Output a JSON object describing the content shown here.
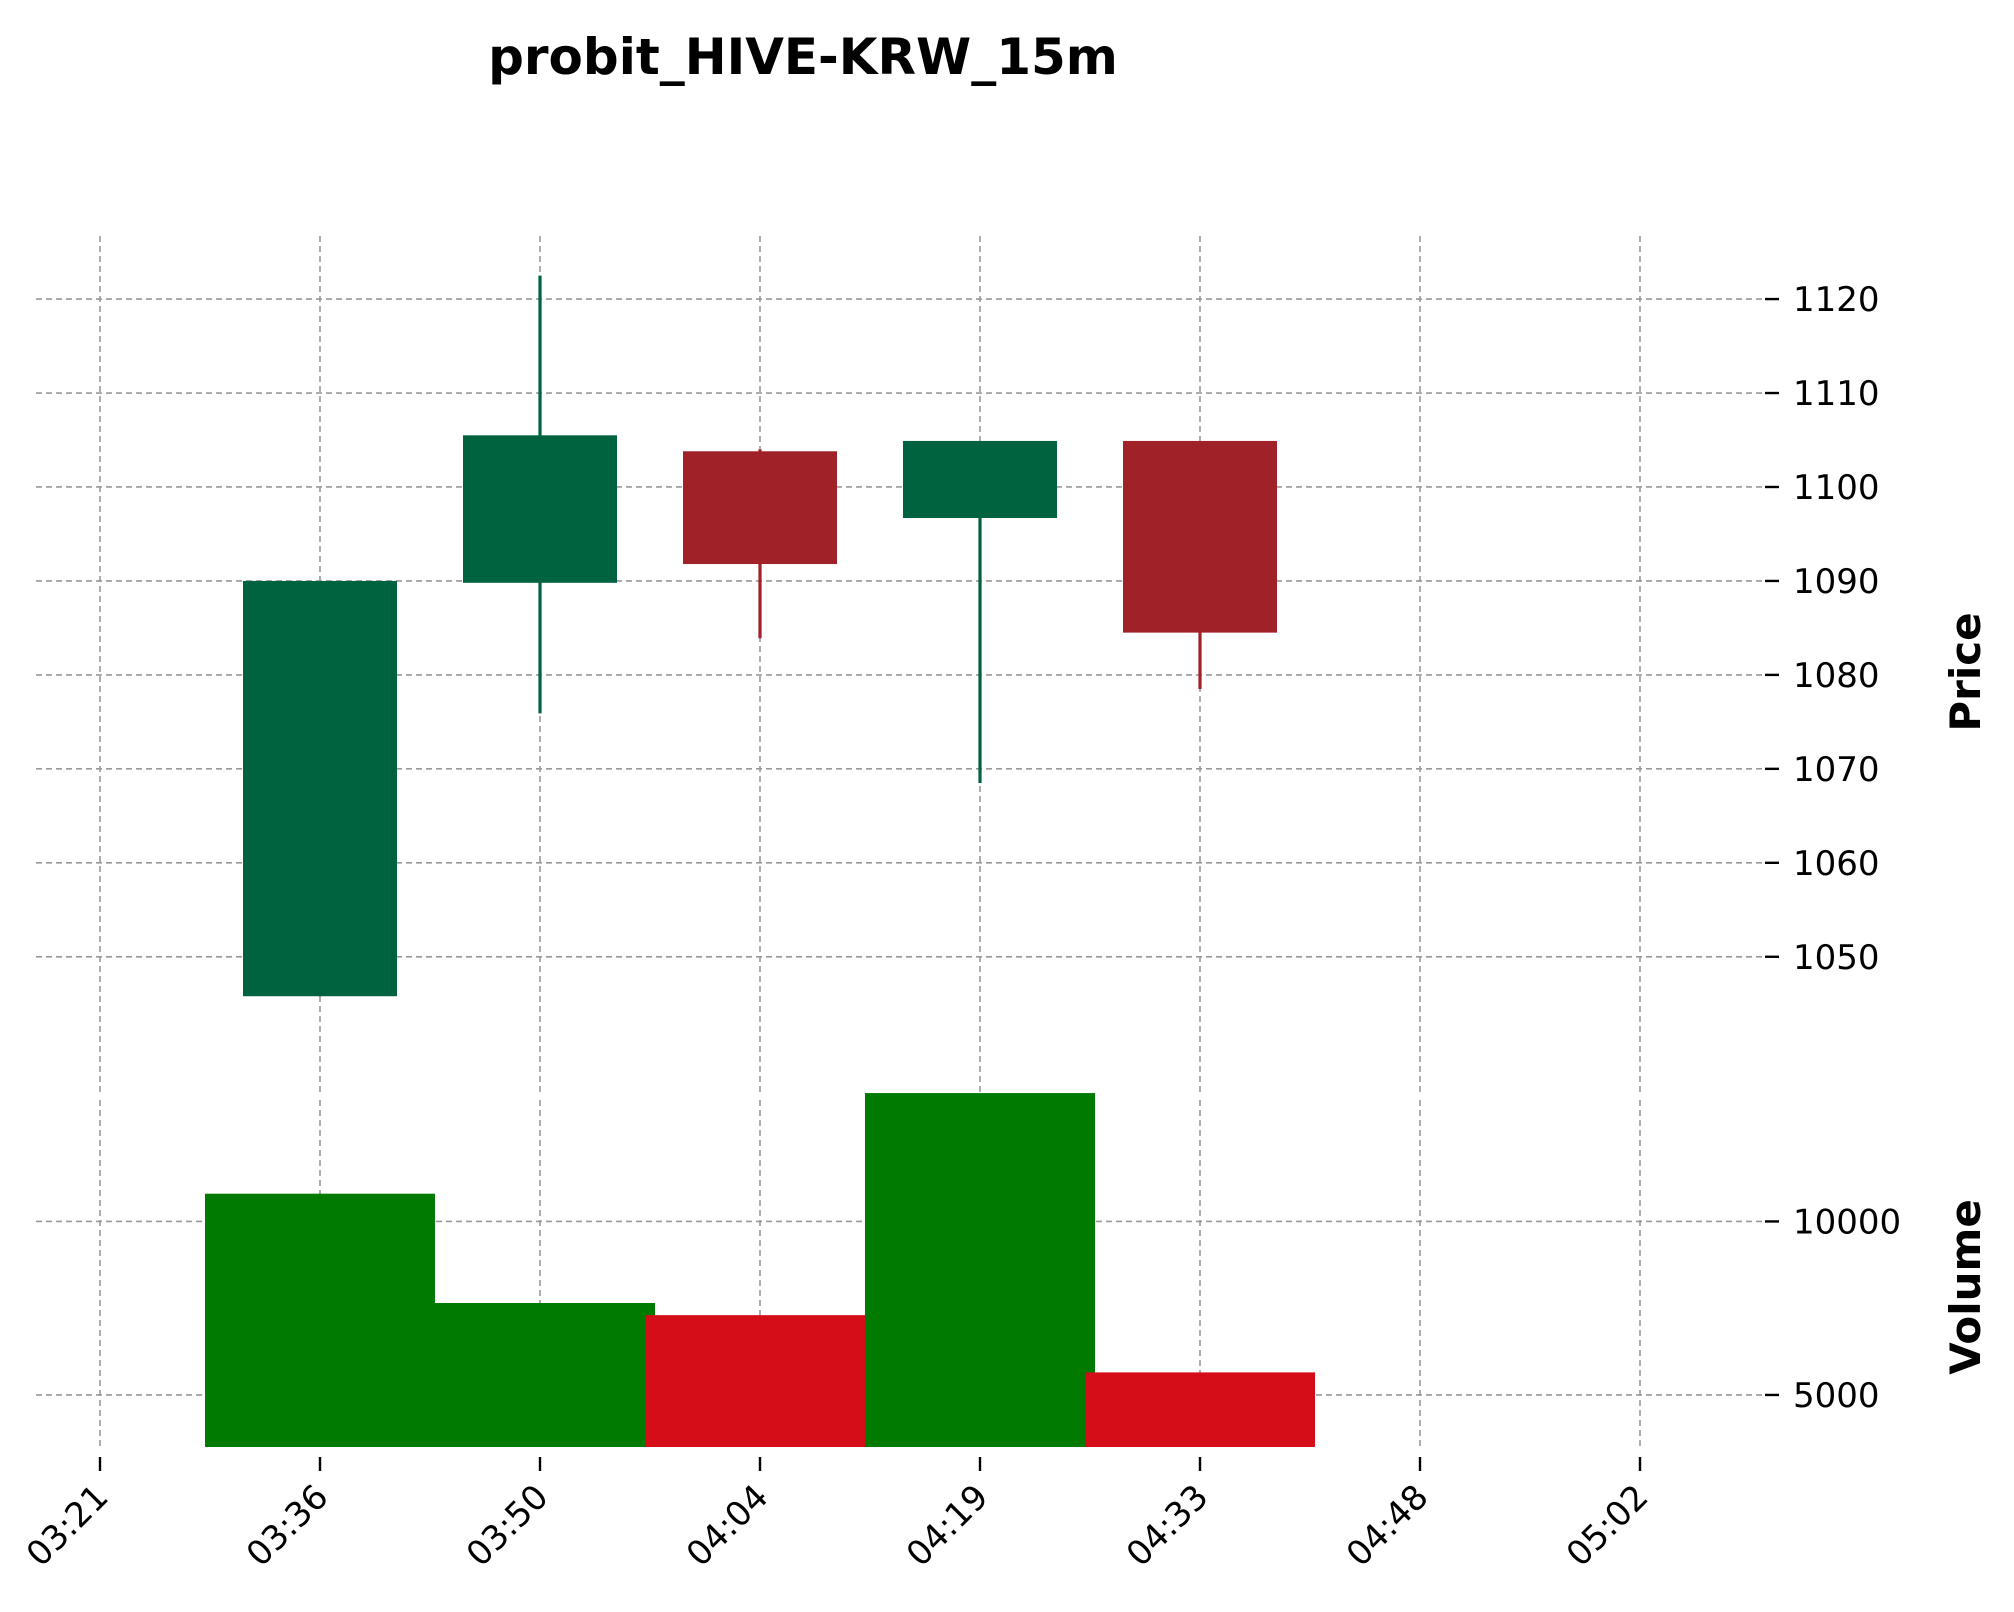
{
  "chart_data": {
    "type": "candlestick",
    "title": "probit_HIVE-KRW_15m",
    "price_label": "Price",
    "volume_label": "Volume",
    "x_ticks": [
      "03:21",
      "03:36",
      "03:50",
      "04:04",
      "04:19",
      "04:33",
      "04:48",
      "05:02"
    ],
    "price_ticks": [
      1050,
      1060,
      1070,
      1080,
      1090,
      1100,
      1110,
      1120
    ],
    "volume_ticks": [
      5000,
      10000
    ],
    "price_range": [
      1035.5,
      1126.5
    ],
    "volume_range": [
      3500,
      13500
    ],
    "x_range": [
      -1,
      6
    ],
    "candles": [
      {
        "open": 1045.8,
        "high": 1090.0,
        "low": 1045.8,
        "close": 1090.0,
        "volume": 10800,
        "dir": "up"
      },
      {
        "open": 1089.8,
        "high": 1122.5,
        "low": 1075.9,
        "close": 1105.5,
        "volume": 7650,
        "dir": "up"
      },
      {
        "open": 1091.8,
        "high": 1104.0,
        "low": 1083.9,
        "close": 1103.8,
        "volume": 7300,
        "dir": "down"
      },
      {
        "open": 1096.7,
        "high": 1104.9,
        "low": 1068.5,
        "close": 1104.9,
        "volume": 13700,
        "dir": "up"
      },
      {
        "open": 1104.9,
        "high": 1104.9,
        "low": 1078.5,
        "close": 1084.5,
        "volume": 5650,
        "dir": "down"
      }
    ],
    "colors": {
      "candle_up": "#006340",
      "candle_down": "#A02128",
      "volume_up": "#007A00",
      "volume_down": "#D50D18",
      "grid": "#999999"
    },
    "grid": true
  }
}
